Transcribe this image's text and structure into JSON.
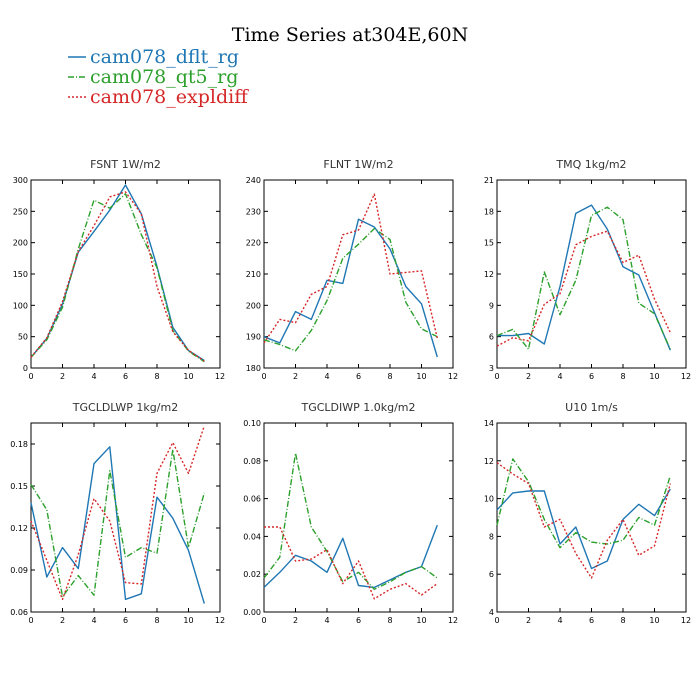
{
  "title": "Time Series at304E,60N",
  "legend": [
    {
      "label": "cam078_dflt_rg",
      "color": "#1f77b4",
      "dash": "solid"
    },
    {
      "label": "cam078_qt5_rg",
      "color": "#2ca02c",
      "dash": "dashdot"
    },
    {
      "label": "cam078_expldiff",
      "color": "#d62728",
      "dash": "dotted"
    }
  ],
  "chart_data": [
    {
      "type": "line",
      "title": "FSNT   1W/m2",
      "x": [
        0,
        1,
        2,
        3,
        4,
        5,
        6,
        7,
        8,
        9,
        10,
        11
      ],
      "xlim": [
        0,
        12
      ],
      "xticks": [
        0,
        2,
        4,
        6,
        8,
        10,
        12
      ],
      "ylim": [
        0,
        300
      ],
      "yticks": [
        0,
        50,
        100,
        150,
        200,
        250,
        300
      ],
      "series": [
        {
          "name": "cam078_dflt_rg",
          "values": [
            17,
            47,
            102,
            185,
            218,
            252,
            292,
            246,
            162,
            65,
            28,
            12
          ]
        },
        {
          "name": "cam078_qt5_rg",
          "values": [
            17,
            45,
            97,
            190,
            268,
            255,
            278,
            213,
            160,
            60,
            27,
            10
          ]
        },
        {
          "name": "cam078_expldiff",
          "values": [
            17,
            48,
            106,
            186,
            227,
            273,
            281,
            246,
            130,
            58,
            28,
            11
          ]
        }
      ]
    },
    {
      "type": "line",
      "title": "FLNT   1W/m2",
      "x": [
        0,
        1,
        2,
        3,
        4,
        5,
        6,
        7,
        8,
        9,
        10,
        11
      ],
      "xlim": [
        0,
        12
      ],
      "xticks": [
        0,
        2,
        4,
        6,
        8,
        10,
        12
      ],
      "ylim": [
        180,
        240
      ],
      "yticks": [
        180,
        190,
        200,
        210,
        220,
        230,
        240
      ],
      "series": [
        {
          "name": "cam078_dflt_rg",
          "values": [
            190,
            188,
            198,
            195.5,
            208,
            207,
            227.5,
            225,
            218,
            206,
            200.5,
            183.5
          ]
        },
        {
          "name": "cam078_qt5_rg",
          "values": [
            189,
            187.5,
            185.5,
            192,
            201.5,
            215,
            219.5,
            224.5,
            221,
            201,
            192.5,
            190
          ]
        },
        {
          "name": "cam078_expldiff",
          "values": [
            188,
            195.5,
            194.5,
            203.5,
            206,
            222.5,
            224,
            235.5,
            210,
            210.5,
            211,
            189.5
          ]
        }
      ]
    },
    {
      "type": "line",
      "title": "TMQ   1kg/m2",
      "x": [
        0,
        1,
        2,
        3,
        4,
        5,
        6,
        7,
        8,
        9,
        10,
        11
      ],
      "xlim": [
        0,
        12
      ],
      "xticks": [
        0,
        2,
        4,
        6,
        8,
        10,
        12
      ],
      "ylim": [
        3,
        21
      ],
      "yticks": [
        3,
        6,
        9,
        12,
        15,
        18,
        21
      ],
      "series": [
        {
          "name": "cam078_dflt_rg",
          "values": [
            6.1,
            6.1,
            6.3,
            5.3,
            10.8,
            17.8,
            18.6,
            16.3,
            12.7,
            11.9,
            8.3,
            4.7
          ]
        },
        {
          "name": "cam078_qt5_rg",
          "values": [
            6.1,
            6.7,
            4.8,
            12.2,
            8.1,
            11.4,
            17.6,
            18.4,
            17.2,
            9.2,
            8.2,
            4.8
          ]
        },
        {
          "name": "cam078_expldiff",
          "values": [
            5.1,
            5.9,
            5.6,
            9.1,
            10.1,
            14.8,
            15.6,
            16.1,
            13.1,
            13.8,
            9.6,
            6.4
          ]
        }
      ]
    },
    {
      "type": "line",
      "title": "TGCLDLWP   1kg/m2",
      "x": [
        0,
        1,
        2,
        3,
        4,
        5,
        6,
        7,
        8,
        9,
        10,
        11
      ],
      "xlim": [
        0,
        12
      ],
      "xticks": [
        0,
        2,
        4,
        6,
        8,
        10,
        12
      ],
      "ylim": [
        0.06,
        0.195
      ],
      "yticks": [
        0.06,
        0.09,
        0.12,
        0.15,
        0.18
      ],
      "series": [
        {
          "name": "cam078_dflt_rg",
          "values": [
            0.138,
            0.085,
            0.106,
            0.091,
            0.166,
            0.178,
            0.069,
            0.073,
            0.142,
            0.127,
            0.104,
            0.066
          ]
        },
        {
          "name": "cam078_qt5_rg",
          "values": [
            0.151,
            0.133,
            0.071,
            0.086,
            0.072,
            0.161,
            0.099,
            0.106,
            0.102,
            0.176,
            0.106,
            0.145
          ]
        },
        {
          "name": "cam078_expldiff",
          "values": [
            0.125,
            0.097,
            0.069,
            0.101,
            0.141,
            0.125,
            0.081,
            0.08,
            0.159,
            0.181,
            0.159,
            0.193
          ]
        }
      ]
    },
    {
      "type": "line",
      "title": "TGCLDIWP   1.0kg/m2",
      "x": [
        0,
        1,
        2,
        3,
        4,
        5,
        6,
        7,
        8,
        9,
        10,
        11
      ],
      "xlim": [
        0,
        12
      ],
      "xticks": [
        0,
        2,
        4,
        6,
        8,
        10,
        12
      ],
      "ylim": [
        0,
        0.1
      ],
      "yticks": [
        0.0,
        0.02,
        0.04,
        0.06,
        0.08,
        0.1
      ],
      "series": [
        {
          "name": "cam078_dflt_rg",
          "values": [
            0.013,
            0.021,
            0.03,
            0.027,
            0.021,
            0.039,
            0.014,
            0.013,
            0.017,
            0.021,
            0.024,
            0.046
          ]
        },
        {
          "name": "cam078_qt5_rg",
          "values": [
            0.018,
            0.029,
            0.084,
            0.045,
            0.032,
            0.016,
            0.021,
            0.012,
            0.016,
            0.021,
            0.024,
            0.018
          ]
        },
        {
          "name": "cam078_expldiff",
          "values": [
            0.045,
            0.045,
            0.027,
            0.028,
            0.033,
            0.015,
            0.027,
            0.007,
            0.012,
            0.015,
            0.009,
            0.015
          ]
        }
      ]
    },
    {
      "type": "line",
      "title": "U10   1m/s",
      "x": [
        0,
        1,
        2,
        3,
        4,
        5,
        6,
        7,
        8,
        9,
        10,
        11
      ],
      "xlim": [
        0,
        12
      ],
      "xticks": [
        0,
        2,
        4,
        6,
        8,
        10,
        12
      ],
      "ylim": [
        4,
        14
      ],
      "yticks": [
        4,
        6,
        8,
        10,
        12,
        14
      ],
      "series": [
        {
          "name": "cam078_dflt_rg",
          "values": [
            9.4,
            10.3,
            10.4,
            10.4,
            7.6,
            8.5,
            6.3,
            6.7,
            8.9,
            9.7,
            9.1,
            10.5
          ]
        },
        {
          "name": "cam078_qt5_rg",
          "values": [
            8.6,
            12.1,
            10.9,
            8.9,
            7.4,
            8.2,
            7.7,
            7.6,
            7.8,
            9.0,
            8.6,
            11.2
          ]
        },
        {
          "name": "cam078_expldiff",
          "values": [
            11.9,
            11.3,
            10.8,
            8.5,
            8.9,
            7.1,
            5.8,
            7.8,
            8.9,
            7.0,
            7.5,
            10.8
          ]
        }
      ]
    }
  ]
}
